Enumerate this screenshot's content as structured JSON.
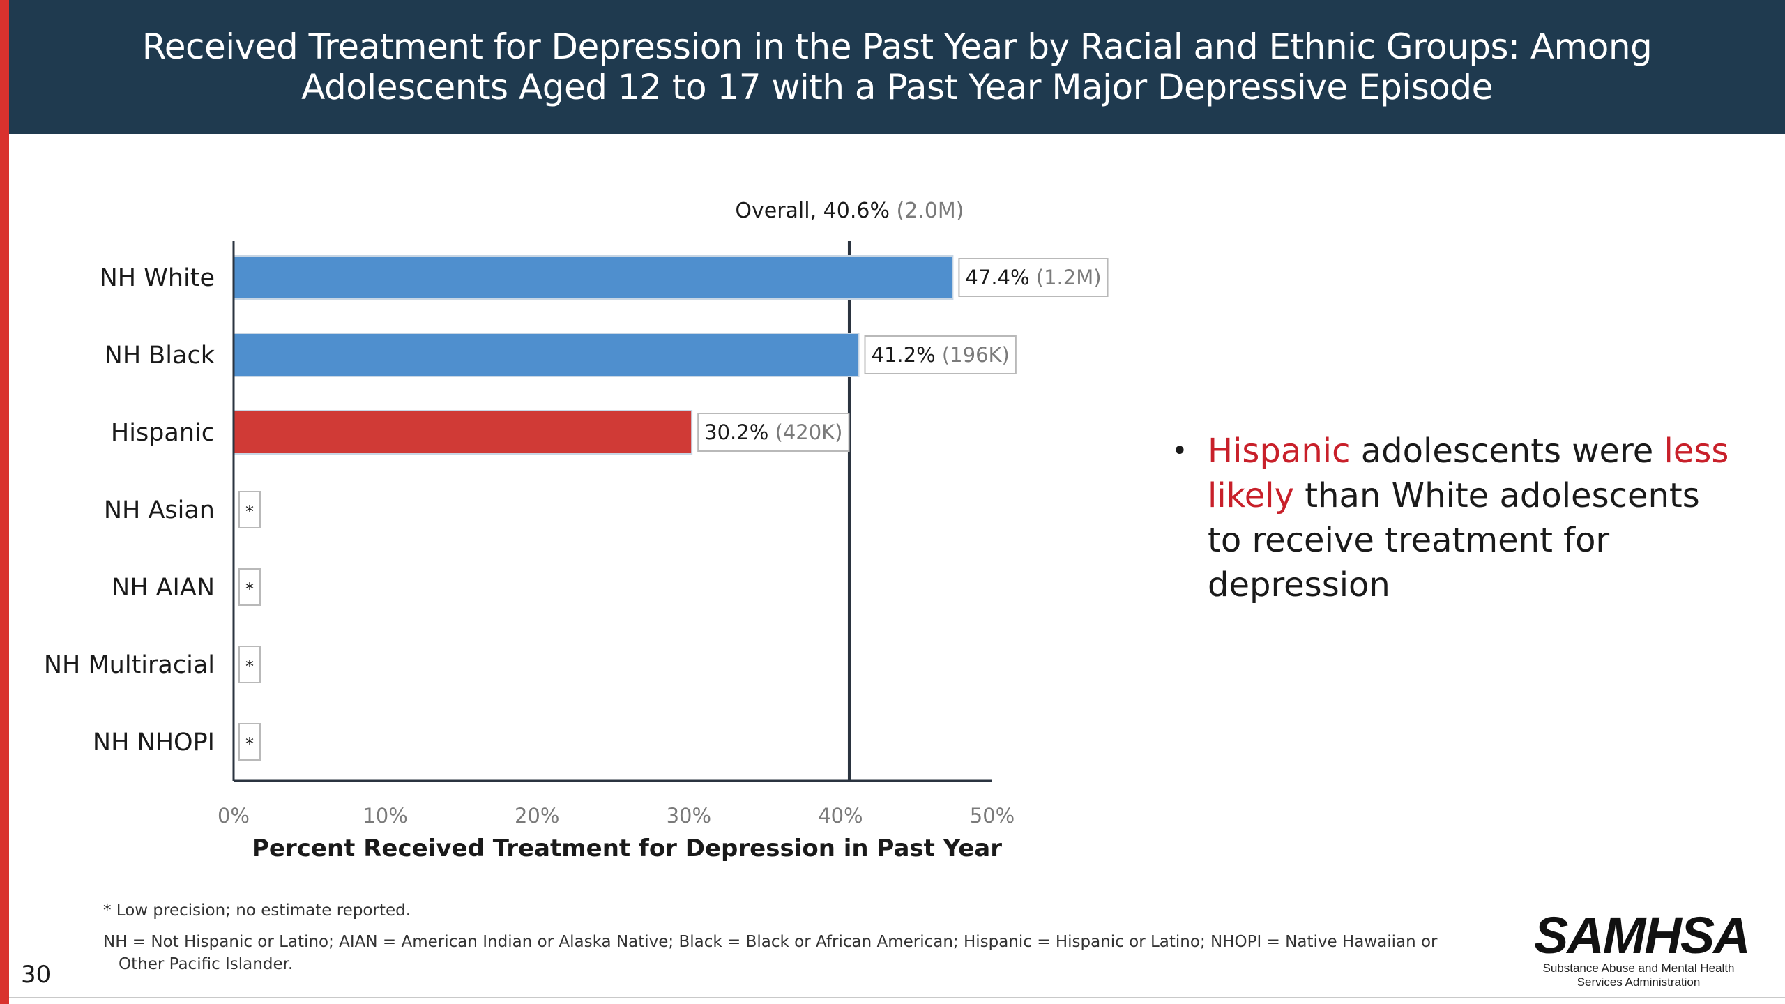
{
  "header": {
    "title_line1": "Received Treatment for Depression in the Past Year by Racial and Ethnic Groups: Among",
    "title_line2": "Adolescents Aged 12 to 17 with a Past Year Major Depressive Episode"
  },
  "chart_data": {
    "type": "bar",
    "orientation": "horizontal",
    "categories": [
      "NH White",
      "NH Black",
      "Hispanic",
      "NH Asian",
      "NH AIAN",
      "NH Multiracial",
      "NH NHOPI"
    ],
    "values": [
      47.4,
      41.2,
      30.2,
      null,
      null,
      null,
      null
    ],
    "value_labels": [
      "47.4%",
      "41.2%",
      "30.2%",
      "*",
      "*",
      "*",
      "*"
    ],
    "count_labels": [
      "(1.2M)",
      "(196K)",
      "(420K)",
      "",
      "",
      "",
      ""
    ],
    "bar_colors": [
      "#4f8fce",
      "#4f8fce",
      "#d03a36",
      "",
      "",
      "",
      ""
    ],
    "reference_line": {
      "value": 40.6,
      "label": "Overall, 40.6%",
      "count_label": "(2.0M)"
    },
    "xlim": [
      0,
      50
    ],
    "x_ticks": [
      "0%",
      "10%",
      "20%",
      "30%",
      "40%",
      "50%"
    ],
    "xlabel": "Percent Received Treatment for Depression in Past Year",
    "grid": false
  },
  "bullet": {
    "part1": "Hispanic",
    "part2": " adolescents were ",
    "part3": "less likely",
    "part4": " than White adolescents to receive treatment for depression"
  },
  "footnotes": {
    "note1": "* Low precision; no estimate reported.",
    "note2": "NH = Not Hispanic or Latino; AIAN = American Indian or Alaska Native; Black = Black or African American; Hispanic = Hispanic or Latino; NHOPI = Native Hawaiian or Other Pacific Islander."
  },
  "page_number": "30",
  "logo": {
    "wordmark": "SAMHSA",
    "subtitle_line1": "Substance Abuse and Mental Health",
    "subtitle_line2": "Services Administration"
  },
  "colors": {
    "header_bg": "#1f3a4f",
    "accent_red": "#d9322e",
    "bar_blue": "#4f8fce",
    "bar_red": "#d03a36",
    "highlight_text": "#c8202a"
  }
}
